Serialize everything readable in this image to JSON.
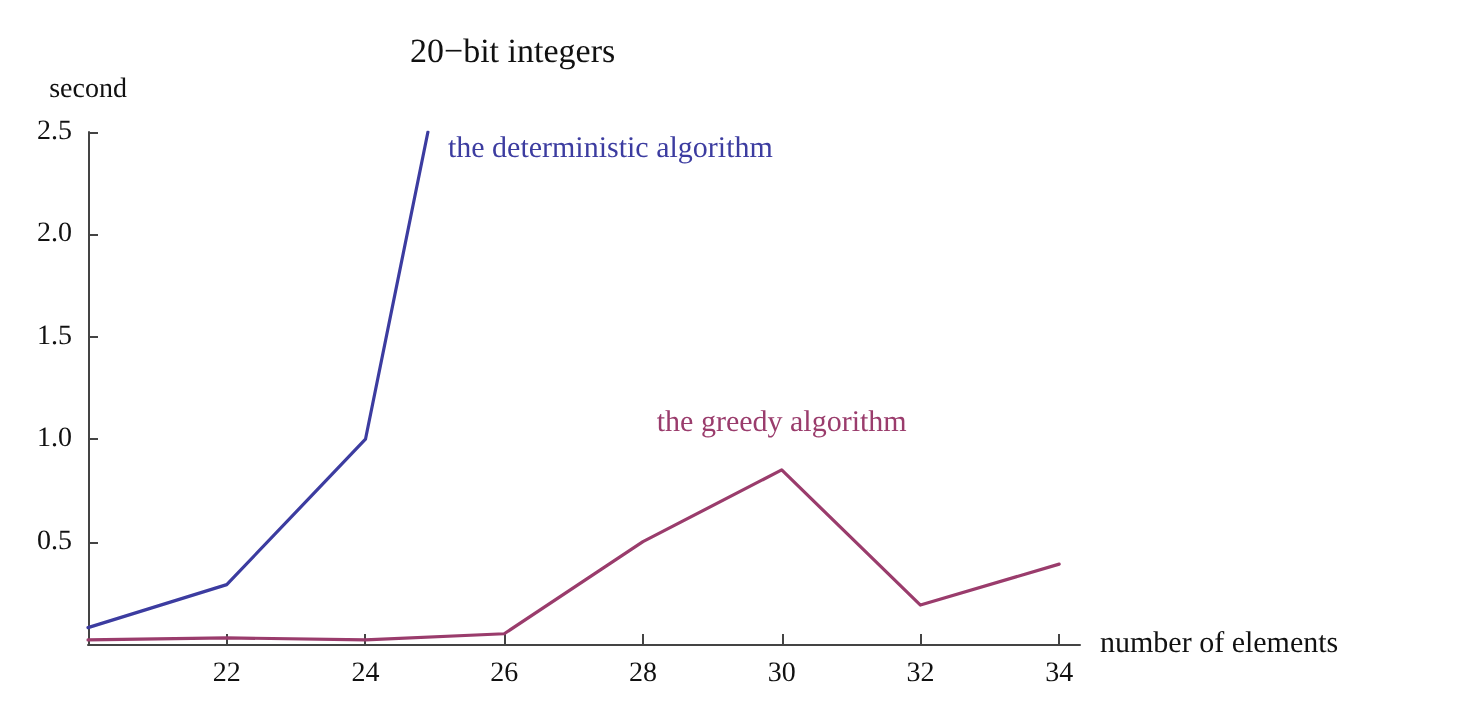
{
  "chart_data": {
    "type": "line",
    "title": "20−bit integers",
    "xlabel": "number of elements",
    "ylabel": "second",
    "xlim": [
      20,
      34.3
    ],
    "xticks": [
      22,
      24,
      26,
      28,
      30,
      32,
      34
    ],
    "ylim": [
      0,
      2.5
    ],
    "yticks": [
      0.5,
      {
        "value": 1,
        "label": "1.0"
      },
      1.5,
      {
        "value": 2,
        "label": "2.0"
      },
      2.5
    ],
    "grid": false,
    "legend": false,
    "marker": "none",
    "line_style": "solid",
    "series": [
      {
        "name": "the deterministic algorithm",
        "color": "#3c3ca0",
        "x": [
          20,
          22,
          24,
          24.9
        ],
        "values": [
          0.08,
          0.29,
          1.0,
          2.5
        ]
      },
      {
        "name": "the greedy algorithm",
        "color": "#9a3c6c",
        "x": [
          20,
          22,
          24,
          26,
          28,
          30,
          32,
          34
        ],
        "values": [
          0.02,
          0.03,
          0.02,
          0.05,
          0.5,
          0.85,
          0.19,
          0.39
        ]
      }
    ]
  }
}
